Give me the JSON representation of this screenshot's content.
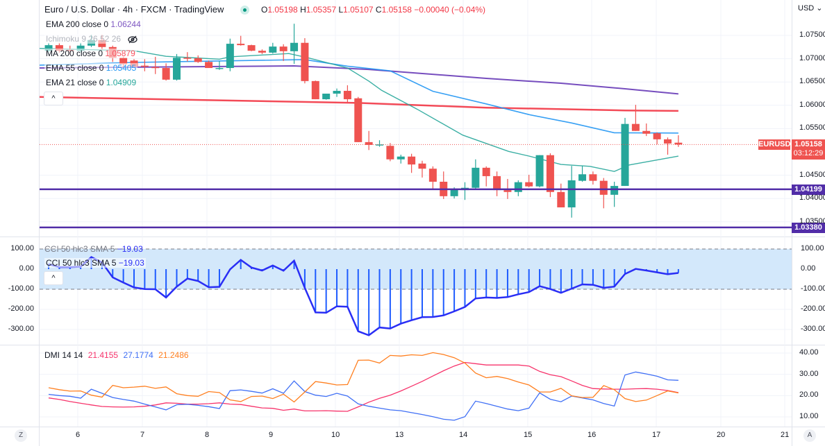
{
  "header": {
    "title": "Euro / U.S. Dollar · 4h · FXCM · TradingView",
    "ohlc": {
      "o_label": "O",
      "o": "1.05198",
      "h_label": "H",
      "h": "1.05357",
      "l_label": "L",
      "l": "1.05107",
      "c_label": "C",
      "c": "1.05158",
      "change": "−0.00040 (−0.04%)"
    },
    "market_status_color": "#089981"
  },
  "legend": {
    "ema200": {
      "label": "EMA 200 close 0",
      "value": "1.06244",
      "color": "#7e57c2"
    },
    "ichimoku": {
      "label": "Ichimoku 9 26 52 26",
      "hidden_icon": "eye-crossed-icon"
    },
    "ma200": {
      "label": "MA 200 close 0",
      "value": "1.05879",
      "color": "#f7525f"
    },
    "ema55": {
      "label": "EMA 55 close 0",
      "value": "1.05405",
      "color": "#2196f3"
    },
    "ema21": {
      "label": "EMA 21 close 0",
      "value": "1.04909",
      "color": "#26a69a"
    },
    "collapse_icon": "^"
  },
  "price_axis": {
    "currency": "USD ⌄",
    "ticks": [
      "1.07500",
      "1.07000",
      "1.06500",
      "1.06000",
      "1.05500",
      "1.04500",
      "1.04000",
      "1.03500"
    ],
    "symbol_label": "EURUSD",
    "last_price": "1.05158",
    "countdown": "03:12:29",
    "levels": [
      "1.04199",
      "1.03380"
    ],
    "up_color": "#26a69a",
    "down_color": "#ef5350",
    "level_color": "#512da8"
  },
  "cci": {
    "legend": "CCI 50 hlc3 SMA 5",
    "value": "−19.03",
    "ticks": [
      "100.00",
      "0.00",
      "-100.00",
      "-200.00",
      "-300.00"
    ],
    "color": "#2a2ef5",
    "band_color": "#d3e8fb"
  },
  "dmi": {
    "legend": "DMI 14 14",
    "v1": "21.4155",
    "v2": "27.1774",
    "v3": "21.2486",
    "colors": [
      "#f7336b",
      "#3f6ff5",
      "#ff7f1f"
    ],
    "ticks": [
      "40.00",
      "30.00",
      "20.00",
      "10.00"
    ]
  },
  "time_axis": {
    "ticks": [
      "6",
      "7",
      "8",
      "9",
      "10",
      "13",
      "14",
      "15",
      "16",
      "17",
      "20",
      "21"
    ],
    "left_button": "Z",
    "right_button": "A"
  },
  "chart_data": {
    "type": "candlestick",
    "first_bar_index": -8,
    "candles_ohlc": [
      [
        1.0717,
        1.0734,
        1.0714,
        1.0729
      ],
      [
        1.0729,
        1.0734,
        1.0713,
        1.0717
      ],
      [
        1.0719,
        1.0728,
        1.071,
        1.0717
      ],
      [
        1.0717,
        1.0734,
        1.0714,
        1.0728
      ],
      [
        1.0728,
        1.0751,
        1.0725,
        1.074
      ],
      [
        1.074,
        1.0751,
        1.0719,
        1.0725
      ],
      [
        1.0725,
        1.0728,
        1.0693,
        1.0702
      ],
      [
        1.0702,
        1.0704,
        1.0682,
        1.0688
      ],
      [
        1.0696,
        1.0699,
        1.0683,
        1.0683
      ],
      [
        1.0685,
        1.0699,
        1.0673,
        1.0683
      ],
      [
        1.0682,
        1.0704,
        1.0667,
        1.068
      ],
      [
        1.068,
        1.069,
        1.0653,
        1.0655
      ],
      [
        1.0655,
        1.071,
        1.0653,
        1.0702
      ],
      [
        1.0702,
        1.0714,
        1.0694,
        1.0701
      ],
      [
        1.0701,
        1.0707,
        1.0691,
        1.0693
      ],
      [
        1.0693,
        1.0696,
        1.068,
        1.068
      ],
      [
        1.0679,
        1.0695,
        1.0676,
        1.068
      ],
      [
        1.068,
        1.0743,
        1.0673,
        1.0732
      ],
      [
        1.0732,
        1.0749,
        1.0728,
        1.0729
      ],
      [
        1.0729,
        1.073,
        1.0716,
        1.0717
      ],
      [
        1.0717,
        1.072,
        1.071,
        1.0713
      ],
      [
        1.0713,
        1.0734,
        1.0711,
        1.0726
      ],
      [
        1.0726,
        1.0731,
        1.0695,
        1.0716
      ],
      [
        1.0716,
        1.0775,
        1.0689,
        1.0734
      ],
      [
        1.0734,
        1.0744,
        1.0647,
        1.0652
      ],
      [
        1.0652,
        1.0653,
        1.0613,
        1.0613
      ],
      [
        1.0613,
        1.0625,
        1.0612,
        1.0625
      ],
      [
        1.0625,
        1.0636,
        1.0618,
        1.0631
      ],
      [
        1.0631,
        1.0643,
        1.0607,
        1.0613
      ],
      [
        1.0615,
        1.0618,
        1.0521,
        1.0521
      ],
      [
        1.0521,
        1.0545,
        1.0504,
        1.0515
      ],
      [
        1.0515,
        1.0525,
        1.0511,
        1.0516
      ],
      [
        1.0513,
        1.0519,
        1.048,
        1.0484
      ],
      [
        1.0484,
        1.0494,
        1.0475,
        1.049
      ],
      [
        1.049,
        1.0496,
        1.0455,
        1.0473
      ],
      [
        1.0475,
        1.0481,
        1.0445,
        1.0464
      ],
      [
        1.0464,
        1.0469,
        1.042,
        1.0436
      ],
      [
        1.0436,
        1.0458,
        1.0399,
        1.0405
      ],
      [
        1.0405,
        1.0424,
        1.04,
        1.0421
      ],
      [
        1.0418,
        1.0435,
        1.0397,
        1.0423
      ],
      [
        1.0423,
        1.0484,
        1.042,
        1.0466
      ],
      [
        1.0466,
        1.0469,
        1.0426,
        1.0448
      ],
      [
        1.0448,
        1.0458,
        1.0405,
        1.0418
      ],
      [
        1.0418,
        1.0442,
        1.0399,
        1.0414
      ],
      [
        1.0414,
        1.0439,
        1.0405,
        1.0435
      ],
      [
        1.0435,
        1.0451,
        1.0424,
        1.0426
      ],
      [
        1.0426,
        1.0493,
        1.0424,
        1.0493
      ],
      [
        1.0493,
        1.0497,
        1.0403,
        1.0414
      ],
      [
        1.0414,
        1.0432,
        1.0381,
        1.0381
      ],
      [
        1.0381,
        1.047,
        1.0359,
        1.0439
      ],
      [
        1.0438,
        1.047,
        1.0436,
        1.0452
      ],
      [
        1.0452,
        1.0458,
        1.043,
        1.0438
      ],
      [
        1.0438,
        1.0444,
        1.0379,
        1.0408
      ],
      [
        1.0408,
        1.0436,
        1.0382,
        1.0427
      ],
      [
        1.0427,
        1.0573,
        1.0427,
        1.056
      ],
      [
        1.056,
        1.0601,
        1.0545,
        1.0545
      ],
      [
        1.0545,
        1.0561,
        1.0534,
        1.0539
      ],
      [
        1.054,
        1.0542,
        1.0516,
        1.0527
      ],
      [
        1.0527,
        1.0531,
        1.0494,
        1.0518
      ],
      [
        1.05198,
        1.05357,
        1.05107,
        1.05158
      ]
    ],
    "moving_averages": {
      "ema200": [
        [
          -9,
          1.068
        ],
        [
          15,
          1.06845
        ],
        [
          22,
          1.0677
        ],
        [
          33,
          1.06577
        ],
        [
          40,
          1.06473
        ],
        [
          46,
          1.06354
        ],
        [
          51,
          1.06244
        ]
      ],
      "ma200": [
        [
          -9,
          1.0618
        ],
        [
          21,
          1.0605
        ],
        [
          33,
          1.0595
        ],
        [
          46,
          1.0589
        ],
        [
          51,
          1.05879
        ]
      ],
      "ema55": [
        [
          -9,
          1.0686
        ],
        [
          0,
          1.0692
        ],
        [
          16,
          1.0698
        ],
        [
          20,
          1.0684
        ],
        [
          24,
          1.0674
        ],
        [
          28,
          1.063
        ],
        [
          33,
          1.0603
        ],
        [
          37,
          1.058
        ],
        [
          41,
          1.0562
        ],
        [
          45,
          1.0541
        ],
        [
          51,
          1.05405
        ]
      ],
      "ema21": [
        [
          -9,
          1.0722
        ],
        [
          0,
          1.0717
        ],
        [
          3,
          1.0705
        ],
        [
          8,
          1.0699
        ],
        [
          9,
          1.0704
        ],
        [
          14.5,
          1.0711
        ],
        [
          16.3,
          1.0702
        ],
        [
          20,
          1.068
        ],
        [
          22,
          1.0652
        ],
        [
          23.2,
          1.0632
        ],
        [
          26.5,
          1.0592
        ],
        [
          30.8,
          1.0536
        ],
        [
          35.1,
          1.0501
        ],
        [
          37,
          1.0491
        ],
        [
          40,
          1.0473
        ],
        [
          42.7,
          1.0469
        ],
        [
          45,
          1.0458
        ],
        [
          46.4,
          1.0472
        ],
        [
          51,
          1.04909
        ]
      ]
    },
    "horizontal_levels": [
      1.04199,
      1.0338
    ],
    "price_ylim": [
      1.033,
      1.079
    ],
    "cci_values": [
      25,
      10,
      10,
      12,
      60,
      33,
      -41,
      -67,
      -91,
      -99,
      -100,
      -141,
      -87,
      -47,
      -59,
      -90,
      -88,
      -1,
      46,
      8,
      -7,
      18,
      -8,
      42,
      -93,
      -215,
      -217,
      -185,
      -187,
      -309,
      -329,
      -290,
      -295,
      -271,
      -254,
      -239,
      -238,
      -230,
      -210,
      -188,
      -146,
      -141,
      -143,
      -139,
      -125,
      -114,
      -85,
      -99,
      -118,
      -97,
      -76,
      -78,
      -93,
      -87,
      -24,
      1,
      -7,
      -16,
      -25,
      -19.03
    ],
    "cci_band": [
      -100,
      100
    ],
    "dmi_series": [
      {
        "values": [
          18.9,
          18.2,
          17.2,
          16.4,
          15.6,
          14.9,
          14.7,
          14.6,
          14.7,
          15.0,
          15.6,
          16.6,
          16.4,
          16.0,
          16.0,
          16.2,
          16.6,
          16.0,
          15.8,
          15.0,
          14.2,
          14.0,
          13.1,
          13.7,
          12.8,
          12.8,
          12.9,
          12.7,
          12.6,
          14.7,
          16.9,
          18.7,
          20.2,
          22.2,
          24.4,
          26.7,
          29.2,
          31.7,
          33.9,
          35.6,
          35.0,
          34.4,
          34.4,
          34.4,
          34.4,
          33.9,
          31.4,
          29.8,
          28.9,
          26.9,
          24.8,
          23.3,
          23.1,
          23.0,
          23.0,
          23.2,
          23.3,
          23.0,
          22.4,
          21.4155
        ]
      },
      {
        "values": [
          20.6,
          20.0,
          19.7,
          18.8,
          23.0,
          21.1,
          19.1,
          18.2,
          17.4,
          16.0,
          14.7,
          13.3,
          15.7,
          15.9,
          15.4,
          14.8,
          13.9,
          22.3,
          22.7,
          22.0,
          21.2,
          23.2,
          21.1,
          26.9,
          21.9,
          20.2,
          19.6,
          21.1,
          19.8,
          16.1,
          15.0,
          14.1,
          13.3,
          12.9,
          12.0,
          11.1,
          10.1,
          8.9,
          8.4,
          10.1,
          17.4,
          16.3,
          15.0,
          13.7,
          12.9,
          14.1,
          21.3,
          18.3,
          17.1,
          19.8,
          18.9,
          18.0,
          16.3,
          15.1,
          29.7,
          31.1,
          30.2,
          29.1,
          27.4,
          27.1774
        ]
      },
      {
        "values": [
          23.7,
          22.8,
          22.1,
          22.2,
          20.2,
          19.3,
          24.8,
          23.7,
          24.0,
          24.4,
          23.4,
          24.1,
          20.9,
          20.0,
          19.7,
          21.9,
          21.4,
          18.0,
          17.2,
          19.6,
          19.8,
          18.6,
          20.7,
          17.0,
          21.7,
          26.6,
          25.9,
          25.0,
          25.2,
          36.6,
          36.7,
          35.3,
          38.9,
          38.6,
          39.2,
          38.9,
          40.2,
          39.3,
          37.8,
          35.3,
          30.6,
          28.4,
          29.0,
          28.0,
          26.4,
          25.0,
          21.7,
          21.7,
          23.4,
          19.9,
          19.1,
          19.2,
          24.7,
          22.8,
          18.6,
          17.2,
          17.9,
          20.0,
          22.2,
          21.2486
        ]
      }
    ]
  }
}
